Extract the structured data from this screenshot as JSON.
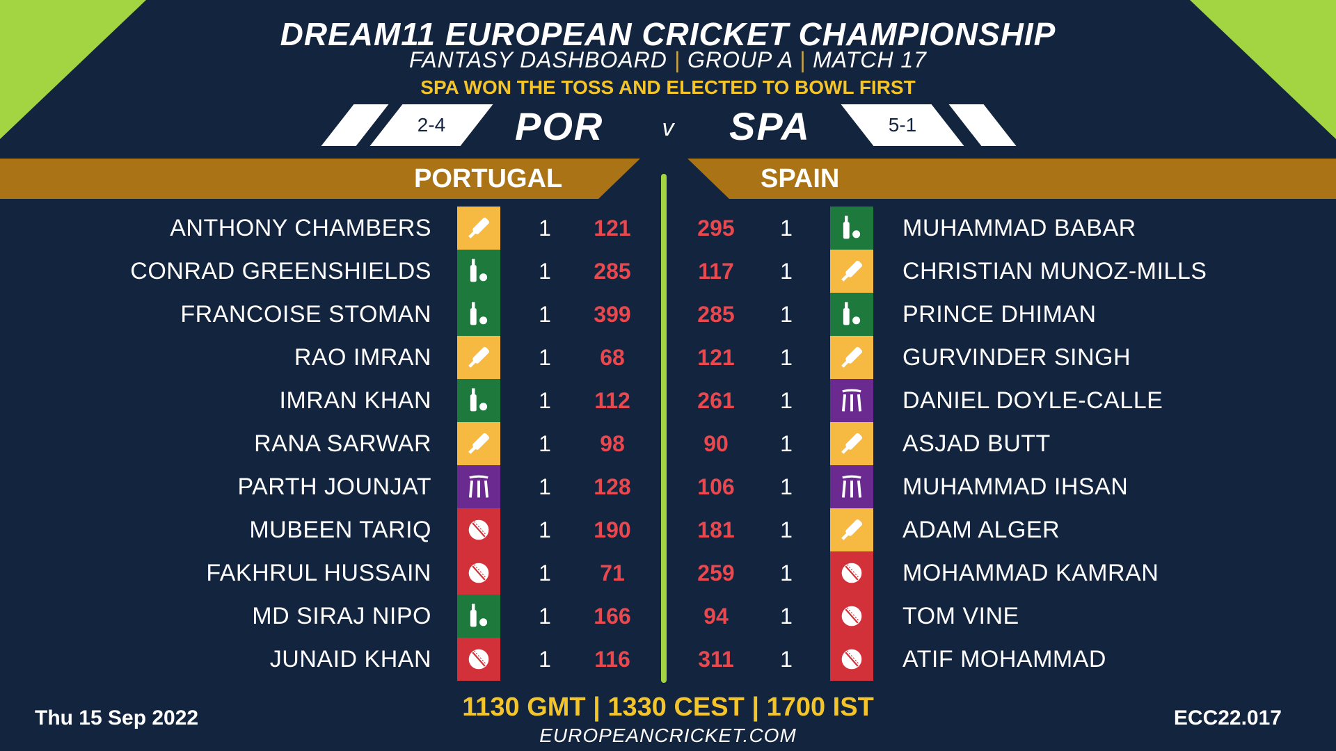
{
  "header": {
    "title": "DREAM11 EUROPEAN CRICKET CHAMPIONSHIP",
    "subtitle_parts": [
      "FANTASY DASHBOARD",
      "GROUP A",
      "MATCH 17"
    ],
    "subtitle_separator": "|",
    "toss": "SPA WON THE TOSS AND ELECTED TO BOWL FIRST"
  },
  "matchup": {
    "home_code": "POR",
    "home_record": "2-4",
    "vs": "v",
    "away_code": "SPA",
    "away_record": "5-1"
  },
  "teams": {
    "home_name": "PORTUGAL",
    "away_name": "SPAIN"
  },
  "role_icons": {
    "bat": "cricket-bat-icon",
    "wk": "bat-and-ball-icon",
    "ar": "stumps-icon",
    "bowl": "cricket-ball-icon"
  },
  "colors": {
    "background": "#13243f",
    "accent_green": "#a3d543",
    "banner": "#a97316",
    "points": "#e8484e",
    "highlight": "#f3c52b",
    "bat": "#f6ba43",
    "wk": "#1d7a3c",
    "ar": "#6a2a8f",
    "bowl": "#d3313a"
  },
  "home_players": [
    {
      "name": "ANTHONY CHAMBERS",
      "role": "bat",
      "count": "1",
      "points": "121"
    },
    {
      "name": "CONRAD GREENSHIELDS",
      "role": "wk",
      "count": "1",
      "points": "285"
    },
    {
      "name": "FRANCOISE STOMAN",
      "role": "wk",
      "count": "1",
      "points": "399"
    },
    {
      "name": "RAO IMRAN",
      "role": "bat",
      "count": "1",
      "points": "68"
    },
    {
      "name": "IMRAN KHAN",
      "role": "wk",
      "count": "1",
      "points": "112"
    },
    {
      "name": "RANA SARWAR",
      "role": "bat",
      "count": "1",
      "points": "98"
    },
    {
      "name": "PARTH JOUNJAT",
      "role": "ar",
      "count": "1",
      "points": "128"
    },
    {
      "name": "MUBEEN TARIQ",
      "role": "bowl",
      "count": "1",
      "points": "190"
    },
    {
      "name": "FAKHRUL HUSSAIN",
      "role": "bowl",
      "count": "1",
      "points": "71"
    },
    {
      "name": "MD SIRAJ NIPO",
      "role": "wk",
      "count": "1",
      "points": "166"
    },
    {
      "name": "JUNAID KHAN",
      "role": "bowl",
      "count": "1",
      "points": "116"
    }
  ],
  "away_players": [
    {
      "name": "MUHAMMAD BABAR",
      "role": "wk",
      "count": "1",
      "points": "295"
    },
    {
      "name": "CHRISTIAN MUNOZ-MILLS",
      "role": "bat",
      "count": "1",
      "points": "117"
    },
    {
      "name": "PRINCE DHIMAN",
      "role": "wk",
      "count": "1",
      "points": "285"
    },
    {
      "name": "GURVINDER SINGH",
      "role": "bat",
      "count": "1",
      "points": "121"
    },
    {
      "name": "DANIEL DOYLE-CALLE",
      "role": "ar",
      "count": "1",
      "points": "261"
    },
    {
      "name": "ASJAD BUTT",
      "role": "bat",
      "count": "1",
      "points": "90"
    },
    {
      "name": "MUHAMMAD IHSAN",
      "role": "ar",
      "count": "1",
      "points": "106"
    },
    {
      "name": "ADAM ALGER",
      "role": "bat",
      "count": "1",
      "points": "181"
    },
    {
      "name": "MOHAMMAD KAMRAN",
      "role": "bowl",
      "count": "1",
      "points": "259"
    },
    {
      "name": "TOM VINE",
      "role": "bowl",
      "count": "1",
      "points": "94"
    },
    {
      "name": "ATIF MOHAMMAD",
      "role": "bowl",
      "count": "1",
      "points": "311"
    }
  ],
  "footer": {
    "times": "1130 GMT | 1330 CEST | 1700 IST",
    "website": "EUROPEANCRICKET.COM",
    "date": "Thu 15 Sep 2022",
    "match_code": "ECC22.017"
  }
}
